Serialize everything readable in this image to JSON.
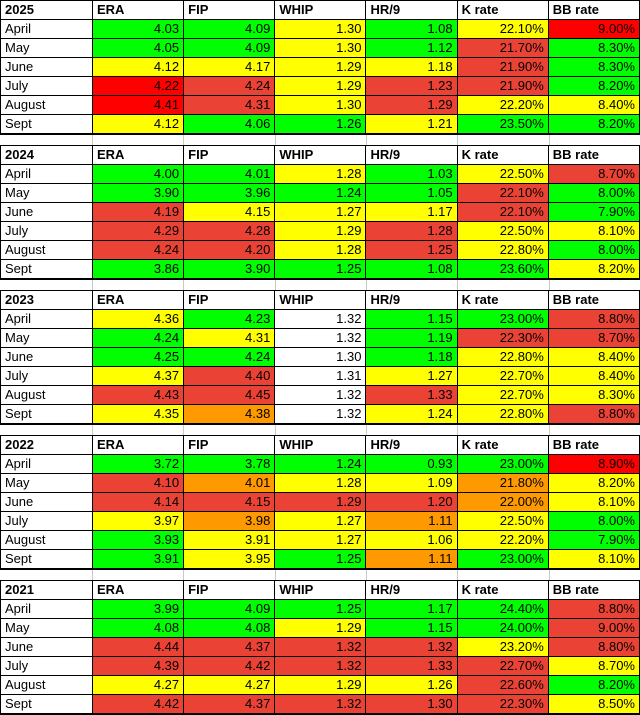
{
  "palette": {
    "g": "#00ff00",
    "y": "#ffff00",
    "o": "#ff9900",
    "r": "#ff0000",
    "s": "#ea4335",
    "w": "#ffffff"
  },
  "grid_line_color": "#c9c9c9",
  "columns": [
    "ERA",
    "FIP",
    "WHIP",
    "HR/9",
    "K rate",
    "BB rate"
  ],
  "sections": [
    {
      "year": "2025",
      "rows": [
        {
          "month": "April",
          "cells": [
            [
              "4.03",
              "g"
            ],
            [
              "4.09",
              "g"
            ],
            [
              "1.30",
              "y"
            ],
            [
              "1.08",
              "g"
            ],
            [
              "22.10%",
              "y"
            ],
            [
              "9.00%",
              "r"
            ]
          ]
        },
        {
          "month": "May",
          "cells": [
            [
              "4.05",
              "g"
            ],
            [
              "4.09",
              "g"
            ],
            [
              "1.30",
              "y"
            ],
            [
              "1.12",
              "g"
            ],
            [
              "21.70%",
              "s"
            ],
            [
              "8.30%",
              "g"
            ]
          ]
        },
        {
          "month": "June",
          "cells": [
            [
              "4.12",
              "y"
            ],
            [
              "4.17",
              "y"
            ],
            [
              "1.29",
              "y"
            ],
            [
              "1.18",
              "y"
            ],
            [
              "21.90%",
              "s"
            ],
            [
              "8.30%",
              "g"
            ]
          ]
        },
        {
          "month": "July",
          "cells": [
            [
              "4.22",
              "r"
            ],
            [
              "4.24",
              "s"
            ],
            [
              "1.29",
              "y"
            ],
            [
              "1.23",
              "s"
            ],
            [
              "21.90%",
              "s"
            ],
            [
              "8.20%",
              "g"
            ]
          ]
        },
        {
          "month": "August",
          "cells": [
            [
              "4.41",
              "r"
            ],
            [
              "4.31",
              "s"
            ],
            [
              "1.30",
              "y"
            ],
            [
              "1.29",
              "s"
            ],
            [
              "22.20%",
              "y"
            ],
            [
              "8.40%",
              "y"
            ]
          ]
        },
        {
          "month": "Sept",
          "cells": [
            [
              "4.12",
              "y"
            ],
            [
              "4.06",
              "g"
            ],
            [
              "1.26",
              "g"
            ],
            [
              "1.21",
              "y"
            ],
            [
              "23.50%",
              "g"
            ],
            [
              "8.20%",
              "g"
            ]
          ]
        }
      ]
    },
    {
      "year": "2024",
      "rows": [
        {
          "month": "April",
          "cells": [
            [
              "4.00",
              "g"
            ],
            [
              "4.01",
              "g"
            ],
            [
              "1.28",
              "y"
            ],
            [
              "1.03",
              "g"
            ],
            [
              "22.50%",
              "y"
            ],
            [
              "8.70%",
              "s"
            ]
          ]
        },
        {
          "month": "May",
          "cells": [
            [
              "3.90",
              "g"
            ],
            [
              "3.96",
              "g"
            ],
            [
              "1.24",
              "g"
            ],
            [
              "1.05",
              "g"
            ],
            [
              "22.10%",
              "s"
            ],
            [
              "8.00%",
              "g"
            ]
          ]
        },
        {
          "month": "June",
          "cells": [
            [
              "4.19",
              "s"
            ],
            [
              "4.15",
              "y"
            ],
            [
              "1.27",
              "y"
            ],
            [
              "1.17",
              "y"
            ],
            [
              "22.10%",
              "s"
            ],
            [
              "7.90%",
              "g"
            ]
          ]
        },
        {
          "month": "July",
          "cells": [
            [
              "4.29",
              "s"
            ],
            [
              "4.28",
              "s"
            ],
            [
              "1.29",
              "y"
            ],
            [
              "1.28",
              "s"
            ],
            [
              "22.50%",
              "y"
            ],
            [
              "8.10%",
              "y"
            ]
          ]
        },
        {
          "month": "August",
          "cells": [
            [
              "4.24",
              "s"
            ],
            [
              "4.20",
              "s"
            ],
            [
              "1.28",
              "y"
            ],
            [
              "1.25",
              "s"
            ],
            [
              "22.80%",
              "y"
            ],
            [
              "8.00%",
              "g"
            ]
          ]
        },
        {
          "month": "Sept",
          "cells": [
            [
              "3.86",
              "g"
            ],
            [
              "3.90",
              "g"
            ],
            [
              "1.25",
              "g"
            ],
            [
              "1.08",
              "g"
            ],
            [
              "23.60%",
              "g"
            ],
            [
              "8.20%",
              "y"
            ]
          ]
        }
      ]
    },
    {
      "year": "2023",
      "rows": [
        {
          "month": "April",
          "cells": [
            [
              "4.36",
              "y"
            ],
            [
              "4.23",
              "g"
            ],
            [
              "1.32",
              "w"
            ],
            [
              "1.15",
              "g"
            ],
            [
              "23.00%",
              "g"
            ],
            [
              "8.80%",
              "s"
            ]
          ]
        },
        {
          "month": "May",
          "cells": [
            [
              "4.24",
              "g"
            ],
            [
              "4.31",
              "y"
            ],
            [
              "1.32",
              "w"
            ],
            [
              "1.19",
              "g"
            ],
            [
              "22.30%",
              "s"
            ],
            [
              "8.70%",
              "s"
            ]
          ]
        },
        {
          "month": "June",
          "cells": [
            [
              "4.25",
              "g"
            ],
            [
              "4.24",
              "g"
            ],
            [
              "1.30",
              "w"
            ],
            [
              "1.18",
              "g"
            ],
            [
              "22.80%",
              "y"
            ],
            [
              "8.40%",
              "y"
            ]
          ]
        },
        {
          "month": "July",
          "cells": [
            [
              "4.37",
              "y"
            ],
            [
              "4.40",
              "s"
            ],
            [
              "1.31",
              "w"
            ],
            [
              "1.27",
              "y"
            ],
            [
              "22.70%",
              "y"
            ],
            [
              "8.40%",
              "y"
            ]
          ]
        },
        {
          "month": "August",
          "cells": [
            [
              "4.43",
              "s"
            ],
            [
              "4.45",
              "s"
            ],
            [
              "1.32",
              "w"
            ],
            [
              "1.33",
              "s"
            ],
            [
              "22.70%",
              "y"
            ],
            [
              "8.30%",
              "y"
            ]
          ]
        },
        {
          "month": "Sept",
          "cells": [
            [
              "4.35",
              "y"
            ],
            [
              "4.38",
              "o"
            ],
            [
              "1.32",
              "w"
            ],
            [
              "1.24",
              "y"
            ],
            [
              "22.80%",
              "y"
            ],
            [
              "8.80%",
              "s"
            ]
          ]
        }
      ]
    },
    {
      "year": "2022",
      "rows": [
        {
          "month": "April",
          "cells": [
            [
              "3.72",
              "g"
            ],
            [
              "3.78",
              "g"
            ],
            [
              "1.24",
              "g"
            ],
            [
              "0.93",
              "g"
            ],
            [
              "23.00%",
              "g"
            ],
            [
              "8.90%",
              "r"
            ]
          ]
        },
        {
          "month": "May",
          "cells": [
            [
              "4.10",
              "s"
            ],
            [
              "4.01",
              "o"
            ],
            [
              "1.28",
              "y"
            ],
            [
              "1.09",
              "y"
            ],
            [
              "21.80%",
              "o"
            ],
            [
              "8.20%",
              "y"
            ]
          ]
        },
        {
          "month": "June",
          "cells": [
            [
              "4.14",
              "s"
            ],
            [
              "4.15",
              "s"
            ],
            [
              "1.29",
              "s"
            ],
            [
              "1.20",
              "s"
            ],
            [
              "22.00%",
              "o"
            ],
            [
              "8.10%",
              "y"
            ]
          ]
        },
        {
          "month": "July",
          "cells": [
            [
              "3.97",
              "y"
            ],
            [
              "3.98",
              "o"
            ],
            [
              "1.27",
              "y"
            ],
            [
              "1.11",
              "o"
            ],
            [
              "22.50%",
              "y"
            ],
            [
              "8.00%",
              "g"
            ]
          ]
        },
        {
          "month": "August",
          "cells": [
            [
              "3.93",
              "g"
            ],
            [
              "3.91",
              "y"
            ],
            [
              "1.27",
              "y"
            ],
            [
              "1.06",
              "y"
            ],
            [
              "22.20%",
              "y"
            ],
            [
              "7.90%",
              "g"
            ]
          ]
        },
        {
          "month": "Sept",
          "cells": [
            [
              "3.91",
              "g"
            ],
            [
              "3.95",
              "y"
            ],
            [
              "1.25",
              "g"
            ],
            [
              "1.11",
              "o"
            ],
            [
              "23.00%",
              "g"
            ],
            [
              "8.10%",
              "y"
            ]
          ]
        }
      ]
    },
    {
      "year": "2021",
      "rows": [
        {
          "month": "April",
          "cells": [
            [
              "3.99",
              "g"
            ],
            [
              "4.09",
              "g"
            ],
            [
              "1.25",
              "g"
            ],
            [
              "1.17",
              "g"
            ],
            [
              "24.40%",
              "g"
            ],
            [
              "8.80%",
              "s"
            ]
          ]
        },
        {
          "month": "May",
          "cells": [
            [
              "4.08",
              "g"
            ],
            [
              "4.08",
              "g"
            ],
            [
              "1.29",
              "y"
            ],
            [
              "1.15",
              "g"
            ],
            [
              "24.00%",
              "g"
            ],
            [
              "9.00%",
              "s"
            ]
          ]
        },
        {
          "month": "June",
          "cells": [
            [
              "4.44",
              "s"
            ],
            [
              "4.37",
              "s"
            ],
            [
              "1.32",
              "s"
            ],
            [
              "1.32",
              "s"
            ],
            [
              "23.20%",
              "y"
            ],
            [
              "8.80%",
              "s"
            ]
          ]
        },
        {
          "month": "July",
          "cells": [
            [
              "4.39",
              "s"
            ],
            [
              "4.42",
              "s"
            ],
            [
              "1.32",
              "s"
            ],
            [
              "1.33",
              "s"
            ],
            [
              "22.70%",
              "s"
            ],
            [
              "8.70%",
              "y"
            ]
          ]
        },
        {
          "month": "August",
          "cells": [
            [
              "4.27",
              "y"
            ],
            [
              "4.27",
              "y"
            ],
            [
              "1.29",
              "y"
            ],
            [
              "1.26",
              "y"
            ],
            [
              "22.60%",
              "s"
            ],
            [
              "8.20%",
              "g"
            ]
          ]
        },
        {
          "month": "Sept",
          "cells": [
            [
              "4.42",
              "s"
            ],
            [
              "4.37",
              "s"
            ],
            [
              "1.32",
              "s"
            ],
            [
              "1.30",
              "s"
            ],
            [
              "22.30%",
              "s"
            ],
            [
              "8.50%",
              "y"
            ]
          ]
        }
      ]
    }
  ]
}
